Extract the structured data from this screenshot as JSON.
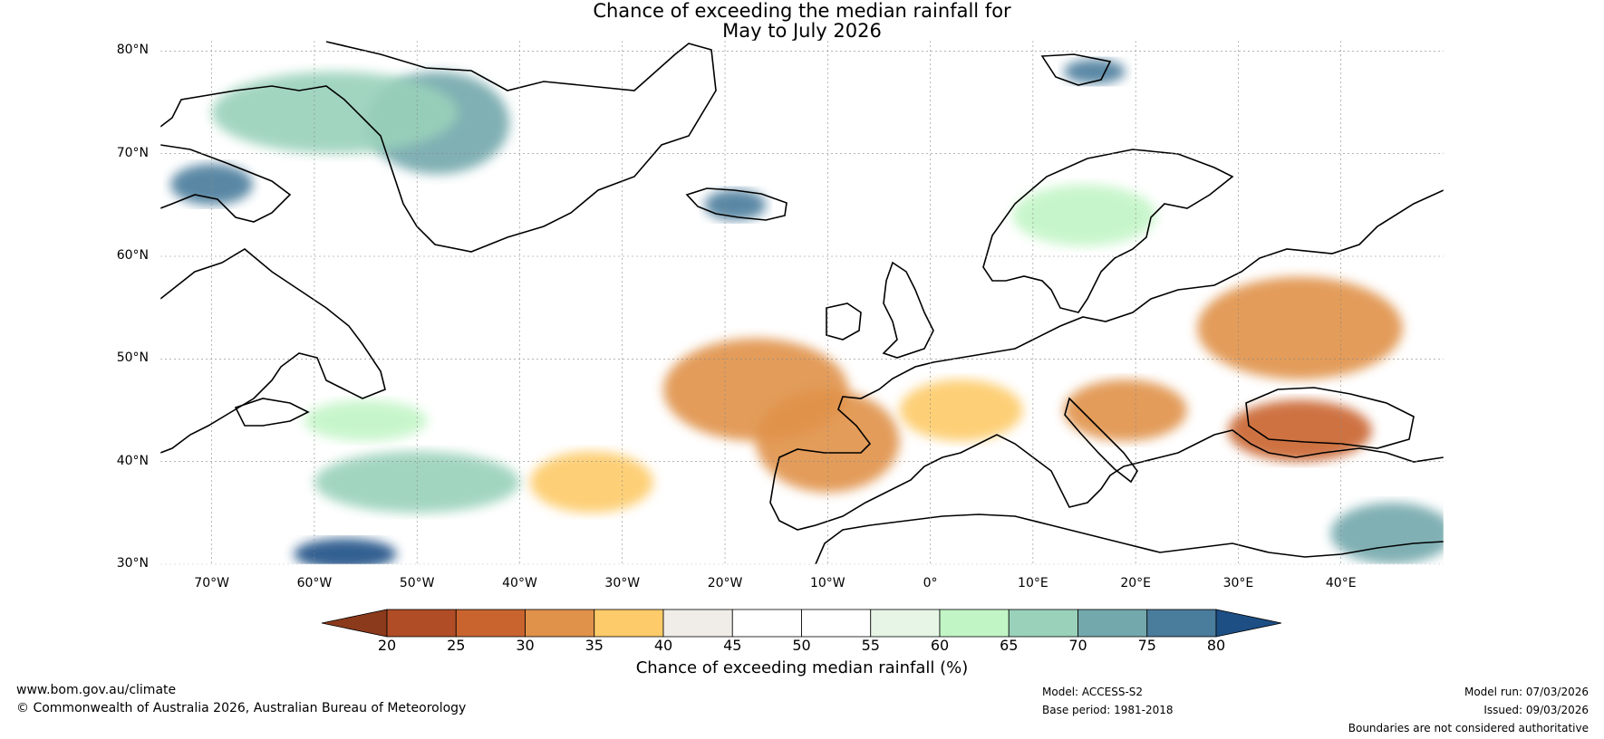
{
  "title": {
    "line1": "Chance of exceeding the median rainfall for",
    "line2": "May to July 2026"
  },
  "map": {
    "projection": "plate-carree",
    "lon_range": [
      -75,
      50
    ],
    "lat_range": [
      30,
      81
    ],
    "lat_ticks": [
      {
        "value": 80,
        "label": "80°N"
      },
      {
        "value": 70,
        "label": "70°N"
      },
      {
        "value": 60,
        "label": "60°N"
      },
      {
        "value": 50,
        "label": "50°N"
      },
      {
        "value": 40,
        "label": "40°N"
      },
      {
        "value": 30,
        "label": "30°N"
      }
    ],
    "lon_ticks": [
      {
        "value": -70,
        "label": "70°W"
      },
      {
        "value": -60,
        "label": "60°W"
      },
      {
        "value": -50,
        "label": "50°W"
      },
      {
        "value": -40,
        "label": "40°W"
      },
      {
        "value": -30,
        "label": "30°W"
      },
      {
        "value": -20,
        "label": "20°W"
      },
      {
        "value": -10,
        "label": "10°W"
      },
      {
        "value": 0,
        "label": "0°"
      },
      {
        "value": 10,
        "label": "10°E"
      },
      {
        "value": 20,
        "label": "20°E"
      },
      {
        "value": 30,
        "label": "30°E"
      },
      {
        "value": 40,
        "label": "40°E"
      }
    ],
    "regions": [
      {
        "name": "greenland-ice-sheet-wet",
        "value": 72,
        "lon": -48,
        "lat": 73,
        "rlon": 7,
        "rlat": 5
      },
      {
        "name": "baffin-bay-wet",
        "value": 67,
        "lon": -58,
        "lat": 74,
        "rlon": 12,
        "rlat": 4
      },
      {
        "name": "canadian-arctic-wet",
        "value": 78,
        "lon": -70,
        "lat": 67,
        "rlon": 4,
        "rlat": 2
      },
      {
        "name": "iceland-wet",
        "value": 78,
        "lon": -19,
        "lat": 65,
        "rlon": 3,
        "rlat": 1.5
      },
      {
        "name": "svalbard-wet",
        "value": 77,
        "lon": 16,
        "lat": 78,
        "rlon": 3,
        "rlat": 1.2
      },
      {
        "name": "scandinavia-wet",
        "value": 63,
        "lon": 15,
        "lat": 64,
        "rlon": 7,
        "rlat": 3
      },
      {
        "name": "iberia-dry",
        "value": 30,
        "lon": -10,
        "lat": 42,
        "rlon": 7,
        "rlat": 5
      },
      {
        "name": "north-atlantic-dry",
        "value": 34,
        "lon": -17,
        "lat": 47,
        "rlon": 9,
        "rlat": 5
      },
      {
        "name": "france-dry",
        "value": 36,
        "lon": 3,
        "lat": 45,
        "rlon": 6,
        "rlat": 3
      },
      {
        "name": "balkans-dry",
        "value": 32,
        "lon": 19,
        "lat": 45,
        "rlon": 6,
        "rlat": 3
      },
      {
        "name": "black-sea-dry",
        "value": 28,
        "lon": 36,
        "lat": 43,
        "rlon": 7,
        "rlat": 3
      },
      {
        "name": "russia-dry",
        "value": 31,
        "lon": 36,
        "lat": 53,
        "rlon": 10,
        "rlat": 5
      },
      {
        "name": "mid-atlantic-dry",
        "value": 36,
        "lon": -33,
        "lat": 38,
        "rlon": 6,
        "rlat": 3
      },
      {
        "name": "atlantic-wet",
        "value": 68,
        "lon": -50,
        "lat": 38,
        "rlon": 10,
        "rlat": 3
      },
      {
        "name": "sargasso-wet",
        "value": 80,
        "lon": -57,
        "lat": 31,
        "rlon": 5,
        "rlat": 1.5
      },
      {
        "name": "egypt-wet",
        "value": 72,
        "lon": 45,
        "lat": 33,
        "rlon": 6,
        "rlat": 3
      },
      {
        "name": "labrador-sea-wet",
        "value": 62,
        "lon": -55,
        "lat": 44,
        "rlon": 6,
        "rlat": 2
      }
    ]
  },
  "colorbar": {
    "ticks": [
      "20",
      "25",
      "30",
      "35",
      "40",
      "45",
      "50",
      "55",
      "60",
      "65",
      "70",
      "75",
      "80"
    ],
    "colors": [
      "#8c3a1c",
      "#b04d27",
      "#c9642f",
      "#e0924a",
      "#fdcb69",
      "#f0ece8",
      "#ffffff",
      "#ffffff",
      "#e6f5e6",
      "#c2f5c6",
      "#99d1ba",
      "#73a8ac",
      "#4a7c9b",
      "#1d4f85"
    ],
    "label": "Chance of exceeding median rainfall (%)"
  },
  "footer": {
    "website": "www.bom.gov.au/climate",
    "copyright": "© Commonwealth of Australia 2026, Australian Bureau of Meteorology",
    "model": "Model: ACCESS-S2",
    "base_period": "Base period: 1981-2018",
    "model_run": "Model run: 07/03/2026",
    "issued": "Issued: 09/03/2026",
    "disclaimer": "Boundaries are not considered authoritative"
  }
}
